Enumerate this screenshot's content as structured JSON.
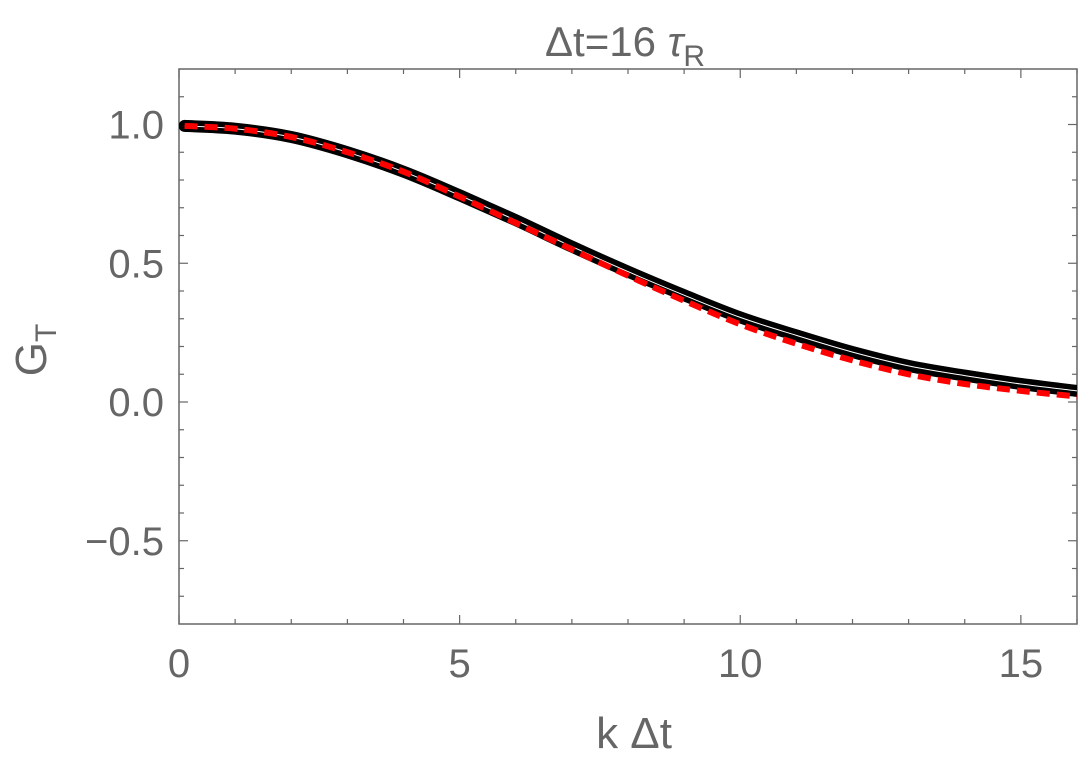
{
  "chart_data": {
    "type": "line",
    "title": {
      "main": "Δt=16 ",
      "sym": "τ",
      "sub": "R"
    },
    "xlabel": "k Δt",
    "ylabel": {
      "main": "G",
      "sub": "T"
    },
    "xlim": [
      0,
      16
    ],
    "ylim": [
      -0.8,
      1.2
    ],
    "xticks": [
      0,
      5,
      10,
      15
    ],
    "xtick_labels": [
      "0",
      "5",
      "10",
      "15"
    ],
    "yticks": [
      -0.5,
      0.0,
      0.5,
      1.0
    ],
    "ytick_labels": [
      "−0.5",
      "0.0",
      "0.5",
      "1.0"
    ],
    "grid": false,
    "colors": {
      "axis": "#666666",
      "series_main": "#000000",
      "series_fit": "#ff0000"
    },
    "series": [
      {
        "style": "solid-thick",
        "x": [
          0.1,
          1,
          2,
          3,
          4,
          5,
          6,
          7,
          8,
          9,
          10,
          11,
          12,
          13,
          14,
          15,
          16
        ],
        "y": [
          0.995,
          0.985,
          0.955,
          0.9,
          0.83,
          0.745,
          0.655,
          0.56,
          0.47,
          0.385,
          0.305,
          0.24,
          0.18,
          0.13,
          0.095,
          0.065,
          0.04
        ]
      },
      {
        "style": "dashed",
        "x": [
          0.1,
          1,
          2,
          3,
          4,
          5,
          6,
          7,
          8,
          9,
          10,
          11,
          12,
          13,
          14,
          15,
          16
        ],
        "y": [
          0.995,
          0.985,
          0.955,
          0.9,
          0.83,
          0.74,
          0.645,
          0.55,
          0.455,
          0.365,
          0.28,
          0.21,
          0.15,
          0.1,
          0.065,
          0.04,
          0.02
        ]
      }
    ]
  }
}
